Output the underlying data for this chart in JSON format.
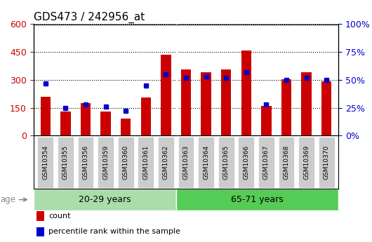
{
  "title": "GDS473 / 242956_at",
  "samples": [
    "GSM10354",
    "GSM10355",
    "GSM10356",
    "GSM10359",
    "GSM10360",
    "GSM10361",
    "GSM10362",
    "GSM10363",
    "GSM10364",
    "GSM10365",
    "GSM10366",
    "GSM10367",
    "GSM10368",
    "GSM10369",
    "GSM10370"
  ],
  "counts": [
    210,
    130,
    175,
    128,
    90,
    205,
    435,
    355,
    340,
    355,
    460,
    160,
    305,
    340,
    290
  ],
  "percentile_ranks": [
    47,
    25,
    28,
    26,
    22,
    45,
    55,
    52,
    53,
    52,
    57,
    28,
    50,
    52,
    50
  ],
  "group1_label": "20-29 years",
  "group2_label": "65-71 years",
  "group1_count": 7,
  "group2_count": 8,
  "left_ylim": [
    0,
    600
  ],
  "right_ylim": [
    0,
    100
  ],
  "left_yticks": [
    0,
    150,
    300,
    450,
    600
  ],
  "right_yticks": [
    0,
    25,
    50,
    75,
    100
  ],
  "bar_color": "#cc0000",
  "dot_color": "#0000cc",
  "age_label": "age",
  "group1_bg": "#aaddaa",
  "group2_bg": "#55cc55",
  "tick_bg": "#cccccc",
  "legend_count_label": "count",
  "legend_pct_label": "percentile rank within the sample",
  "title_fontsize": 11,
  "axis_fontsize": 9,
  "bar_width": 0.5
}
